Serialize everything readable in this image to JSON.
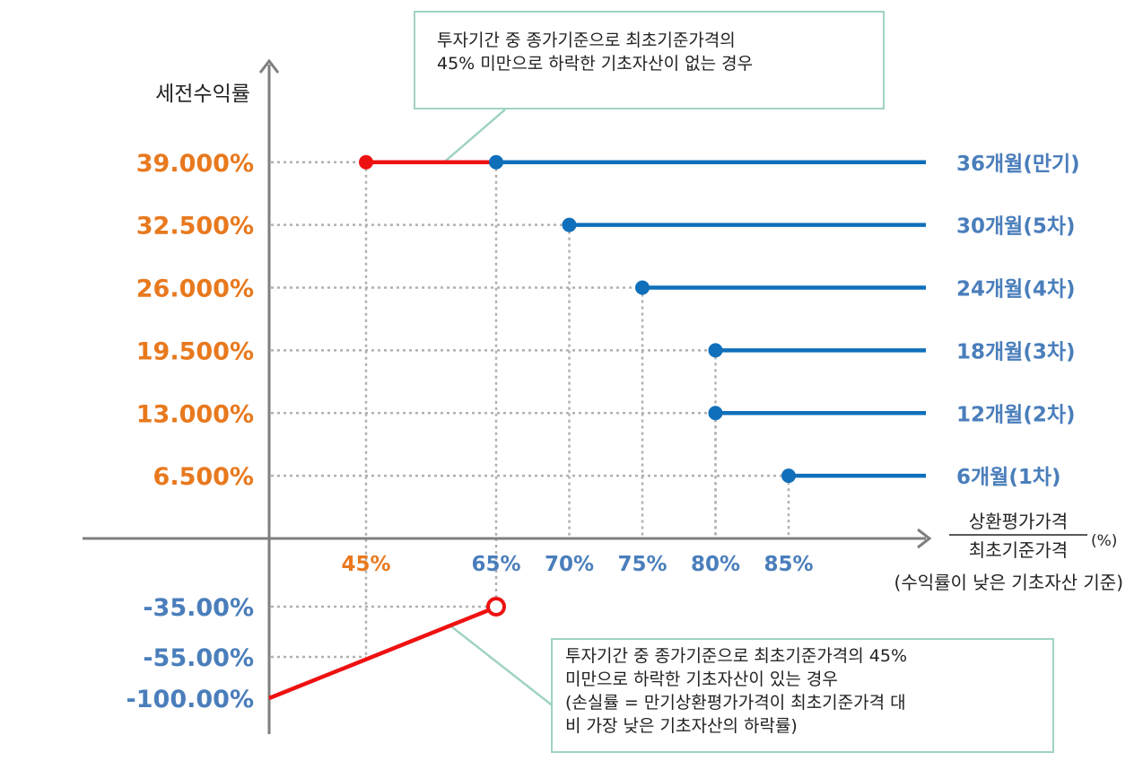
{
  "chart_data": {
    "type": "line",
    "title": "",
    "ylabel": "세전수익률",
    "xlabel": {
      "numerator": "상환평가가격",
      "denominator": "최초기준가격",
      "unit": "(%)",
      "note": "(수익률이 낮은 기초자산 기준)"
    },
    "x_ticks": [
      "45%",
      "65%",
      "70%",
      "75%",
      "80%",
      "85%"
    ],
    "series": [
      {
        "name": "36개월(만기)",
        "threshold": "65%",
        "return": "39.000%",
        "x": 65,
        "y": 39.0
      },
      {
        "name": "30개월(5차)",
        "threshold": "70%",
        "return": "32.500%",
        "x": 70,
        "y": 32.5
      },
      {
        "name": "24개월(4차)",
        "threshold": "75%",
        "return": "26.000%",
        "x": 75,
        "y": 26.0
      },
      {
        "name": "18개월(3차)",
        "threshold": "80%",
        "return": "19.500%",
        "x": 80,
        "y": 19.5
      },
      {
        "name": "12개월(2차)",
        "threshold": "80%",
        "return": "13.000%",
        "x": 80,
        "y": 13.0
      },
      {
        "name": "6개월(1차)",
        "threshold": "85%",
        "return": "6.500%",
        "x": 85,
        "y": 6.5
      }
    ],
    "red_segment": {
      "x": [
        45,
        65
      ],
      "y": 39.0
    },
    "loss_line": {
      "x": [
        0,
        65
      ],
      "y": [
        -100,
        -35
      ]
    },
    "negative_labels": [
      "-35.00%",
      "-55.00%",
      "-100.00%"
    ],
    "colors": {
      "positive": "#e8791e",
      "negative": "#4a7ebb",
      "series": "#0f6fba",
      "loss": "#ee1111",
      "axis": "#7f7f7f",
      "callout_border": "#9fd3c0"
    }
  },
  "callouts": {
    "top": {
      "line1": "투자기간 중 종가기준으로 최초기준가격의",
      "line2": "45% 미만으로 하락한 기초자산이 없는 경우"
    },
    "bottom": {
      "line1": "투자기간 중 종가기준으로 최초기준가격의 45%",
      "line2": "미만으로 하락한 기초자산이 있는 경우",
      "line3": "(손실률 = 만기상환평가가격이 최초기준가격 대",
      "line4": "비 가장 낮은 기초자산의 하락률)"
    }
  }
}
